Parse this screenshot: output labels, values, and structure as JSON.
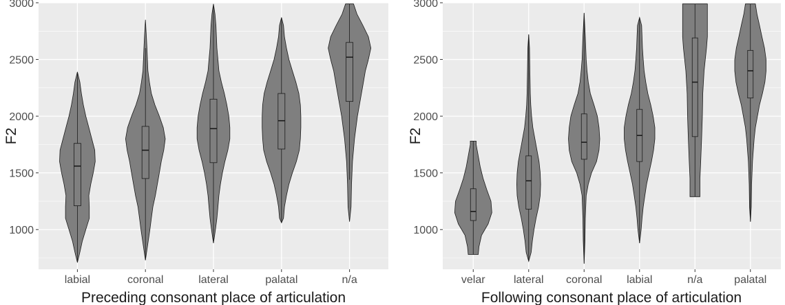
{
  "chart_data": [
    {
      "type": "violin",
      "xlabel": "Preceding consonant place of articulation",
      "ylabel": "F2",
      "ylim": [
        650,
        3000
      ],
      "yticks": [
        1000,
        1500,
        2000,
        2500,
        3000
      ],
      "grid": true,
      "colors": {
        "panel": "#ebebeb",
        "grid": "#ffffff",
        "violin_fill": "#7f7f7f",
        "violin_stroke": "#1a1a1a",
        "text": "#1a1a1a",
        "ticktext": "#4d4d4d"
      },
      "categories": [
        "labial",
        "coronal",
        "lateral",
        "palatal",
        "n/a"
      ],
      "groups": [
        {
          "category": "labial",
          "min": 710,
          "max": 2390,
          "q1": 1210,
          "median": 1560,
          "q3": 1760,
          "whisker_low": 710,
          "whisker_high": 2390,
          "profile": [
            [
              710,
              0
            ],
            [
              800,
              0.05
            ],
            [
              900,
              0.1
            ],
            [
              1000,
              0.17
            ],
            [
              1100,
              0.24
            ],
            [
              1200,
              0.24
            ],
            [
              1300,
              0.23
            ],
            [
              1400,
              0.27
            ],
            [
              1500,
              0.32
            ],
            [
              1600,
              0.36
            ],
            [
              1700,
              0.35
            ],
            [
              1800,
              0.29
            ],
            [
              1900,
              0.23
            ],
            [
              2000,
              0.17
            ],
            [
              2100,
              0.12
            ],
            [
              2200,
              0.08
            ],
            [
              2300,
              0.05
            ],
            [
              2390,
              0
            ]
          ]
        },
        {
          "category": "coronal",
          "min": 730,
          "max": 2850,
          "q1": 1450,
          "median": 1700,
          "q3": 1910,
          "whisker_low": 730,
          "whisker_high": 2600,
          "profile": [
            [
              730,
              0
            ],
            [
              850,
              0.04
            ],
            [
              1000,
              0.09
            ],
            [
              1100,
              0.12
            ],
            [
              1200,
              0.15
            ],
            [
              1300,
              0.2
            ],
            [
              1400,
              0.24
            ],
            [
              1500,
              0.28
            ],
            [
              1600,
              0.32
            ],
            [
              1700,
              0.37
            ],
            [
              1800,
              0.4
            ],
            [
              1900,
              0.36
            ],
            [
              2000,
              0.28
            ],
            [
              2100,
              0.19
            ],
            [
              2200,
              0.12
            ],
            [
              2300,
              0.08
            ],
            [
              2400,
              0.05
            ],
            [
              2600,
              0.03
            ],
            [
              2700,
              0.02
            ],
            [
              2850,
              0
            ]
          ]
        },
        {
          "category": "lateral",
          "min": 880,
          "max": 2990,
          "q1": 1590,
          "median": 1890,
          "q3": 2150,
          "whisker_low": 880,
          "whisker_high": 2990,
          "profile": [
            [
              880,
              0
            ],
            [
              1000,
              0.04
            ],
            [
              1100,
              0.07
            ],
            [
              1200,
              0.09
            ],
            [
              1300,
              0.11
            ],
            [
              1400,
              0.14
            ],
            [
              1500,
              0.18
            ],
            [
              1600,
              0.23
            ],
            [
              1700,
              0.29
            ],
            [
              1800,
              0.33
            ],
            [
              1900,
              0.33
            ],
            [
              2000,
              0.31
            ],
            [
              2100,
              0.27
            ],
            [
              2200,
              0.22
            ],
            [
              2300,
              0.16
            ],
            [
              2400,
              0.11
            ],
            [
              2500,
              0.09
            ],
            [
              2600,
              0.07
            ],
            [
              2700,
              0.06
            ],
            [
              2800,
              0.05
            ],
            [
              2900,
              0.03
            ],
            [
              2990,
              0
            ]
          ]
        },
        {
          "category": "palatal",
          "min": 1060,
          "max": 2870,
          "q1": 1710,
          "median": 1960,
          "q3": 2200,
          "whisker_low": 1060,
          "whisker_high": 2870,
          "profile": [
            [
              1060,
              0
            ],
            [
              1100,
              0.04
            ],
            [
              1200,
              0.06
            ],
            [
              1300,
              0.1
            ],
            [
              1400,
              0.15
            ],
            [
              1500,
              0.22
            ],
            [
              1600,
              0.3
            ],
            [
              1700,
              0.36
            ],
            [
              1800,
              0.38
            ],
            [
              1900,
              0.39
            ],
            [
              2000,
              0.39
            ],
            [
              2100,
              0.38
            ],
            [
              2200,
              0.35
            ],
            [
              2300,
              0.29
            ],
            [
              2400,
              0.22
            ],
            [
              2500,
              0.15
            ],
            [
              2600,
              0.1
            ],
            [
              2700,
              0.06
            ],
            [
              2800,
              0.04
            ],
            [
              2870,
              0
            ]
          ]
        },
        {
          "category": "n/a",
          "min": 1070,
          "max": 2990,
          "q1": 2130,
          "median": 2520,
          "q3": 2650,
          "whisker_low": 1440,
          "whisker_high": 2990,
          "profile": [
            [
              1070,
              0
            ],
            [
              1200,
              0.03
            ],
            [
              1400,
              0.04
            ],
            [
              1600,
              0.06
            ],
            [
              1800,
              0.1
            ],
            [
              2000,
              0.16
            ],
            [
              2200,
              0.24
            ],
            [
              2300,
              0.28
            ],
            [
              2400,
              0.32
            ],
            [
              2500,
              0.38
            ],
            [
              2600,
              0.43
            ],
            [
              2700,
              0.38
            ],
            [
              2800,
              0.27
            ],
            [
              2900,
              0.15
            ],
            [
              2990,
              0.08
            ]
          ]
        }
      ]
    },
    {
      "type": "violin",
      "xlabel": "Following consonant place of articulation",
      "ylabel": "F2",
      "ylim": [
        650,
        3000
      ],
      "yticks": [
        1000,
        1500,
        2000,
        2500,
        3000
      ],
      "grid": true,
      "colors": {
        "panel": "#ebebeb",
        "grid": "#ffffff",
        "violin_fill": "#7f7f7f",
        "violin_stroke": "#1a1a1a",
        "text": "#1a1a1a",
        "ticktext": "#4d4d4d"
      },
      "categories": [
        "velar",
        "lateral",
        "coronal",
        "labial",
        "n/a",
        "palatal"
      ],
      "groups": [
        {
          "category": "velar",
          "min": 780,
          "max": 1780,
          "q1": 1080,
          "median": 1160,
          "q3": 1360,
          "whisker_low": 780,
          "whisker_high": 1780,
          "profile": [
            [
              780,
              0.12
            ],
            [
              850,
              0.14
            ],
            [
              950,
              0.2
            ],
            [
              1050,
              0.36
            ],
            [
              1150,
              0.45
            ],
            [
              1250,
              0.43
            ],
            [
              1350,
              0.33
            ],
            [
              1450,
              0.24
            ],
            [
              1550,
              0.17
            ],
            [
              1650,
              0.12
            ],
            [
              1750,
              0.07
            ],
            [
              1780,
              0.07
            ]
          ]
        },
        {
          "category": "lateral",
          "min": 720,
          "max": 2720,
          "q1": 1180,
          "median": 1430,
          "q3": 1650,
          "whisker_low": 720,
          "whisker_high": 2720,
          "profile": [
            [
              720,
              0
            ],
            [
              800,
              0.06
            ],
            [
              900,
              0.09
            ],
            [
              1000,
              0.13
            ],
            [
              1100,
              0.18
            ],
            [
              1200,
              0.24
            ],
            [
              1300,
              0.28
            ],
            [
              1400,
              0.29
            ],
            [
              1500,
              0.28
            ],
            [
              1600,
              0.25
            ],
            [
              1700,
              0.2
            ],
            [
              1800,
              0.15
            ],
            [
              1900,
              0.1
            ],
            [
              2000,
              0.07
            ],
            [
              2100,
              0.05
            ],
            [
              2200,
              0.04
            ],
            [
              2400,
              0.03
            ],
            [
              2600,
              0.02
            ],
            [
              2720,
              0
            ]
          ]
        },
        {
          "category": "coronal",
          "min": 700,
          "max": 2910,
          "q1": 1620,
          "median": 1770,
          "q3": 2020,
          "whisker_low": 700,
          "whisker_high": 2910,
          "profile": [
            [
              700,
              0
            ],
            [
              900,
              0.02
            ],
            [
              1100,
              0.03
            ],
            [
              1300,
              0.05
            ],
            [
              1400,
              0.1
            ],
            [
              1500,
              0.18
            ],
            [
              1600,
              0.3
            ],
            [
              1700,
              0.36
            ],
            [
              1800,
              0.38
            ],
            [
              1900,
              0.36
            ],
            [
              2000,
              0.32
            ],
            [
              2100,
              0.24
            ],
            [
              2200,
              0.15
            ],
            [
              2300,
              0.1
            ],
            [
              2400,
              0.07
            ],
            [
              2500,
              0.05
            ],
            [
              2700,
              0.03
            ],
            [
              2910,
              0
            ]
          ]
        },
        {
          "category": "labial",
          "min": 880,
          "max": 2870,
          "q1": 1600,
          "median": 1830,
          "q3": 2060,
          "whisker_low": 880,
          "whisker_high": 2870,
          "profile": [
            [
              880,
              0
            ],
            [
              1000,
              0.04
            ],
            [
              1100,
              0.06
            ],
            [
              1200,
              0.09
            ],
            [
              1300,
              0.13
            ],
            [
              1400,
              0.17
            ],
            [
              1500,
              0.23
            ],
            [
              1600,
              0.29
            ],
            [
              1700,
              0.34
            ],
            [
              1800,
              0.37
            ],
            [
              1900,
              0.37
            ],
            [
              2000,
              0.33
            ],
            [
              2100,
              0.27
            ],
            [
              2200,
              0.2
            ],
            [
              2300,
              0.15
            ],
            [
              2400,
              0.11
            ],
            [
              2500,
              0.09
            ],
            [
              2600,
              0.07
            ],
            [
              2700,
              0.06
            ],
            [
              2800,
              0.05
            ],
            [
              2870,
              0
            ]
          ]
        },
        {
          "category": "n/a",
          "min": 1290,
          "max": 2990,
          "q1": 1820,
          "median": 2300,
          "q3": 2690,
          "whisker_low": 1290,
          "whisker_high": 2990,
          "profile": [
            [
              1290,
              0.12
            ],
            [
              1450,
              0.12
            ],
            [
              1600,
              0.14
            ],
            [
              1800,
              0.16
            ],
            [
              2000,
              0.18
            ],
            [
              2200,
              0.19
            ],
            [
              2400,
              0.22
            ],
            [
              2600,
              0.28
            ],
            [
              2700,
              0.3
            ],
            [
              2800,
              0.3
            ],
            [
              2990,
              0.3
            ]
          ]
        },
        {
          "category": "palatal",
          "min": 1070,
          "max": 2990,
          "q1": 2160,
          "median": 2400,
          "q3": 2580,
          "whisker_low": 1070,
          "whisker_high": 2990,
          "profile": [
            [
              1070,
              0
            ],
            [
              1200,
              0.02
            ],
            [
              1400,
              0.03
            ],
            [
              1600,
              0.05
            ],
            [
              1800,
              0.09
            ],
            [
              1900,
              0.12
            ],
            [
              2000,
              0.17
            ],
            [
              2100,
              0.22
            ],
            [
              2200,
              0.29
            ],
            [
              2300,
              0.35
            ],
            [
              2400,
              0.38
            ],
            [
              2500,
              0.38
            ],
            [
              2600,
              0.34
            ],
            [
              2700,
              0.28
            ],
            [
              2800,
              0.22
            ],
            [
              2900,
              0.16
            ],
            [
              2990,
              0.12
            ]
          ]
        }
      ]
    }
  ]
}
